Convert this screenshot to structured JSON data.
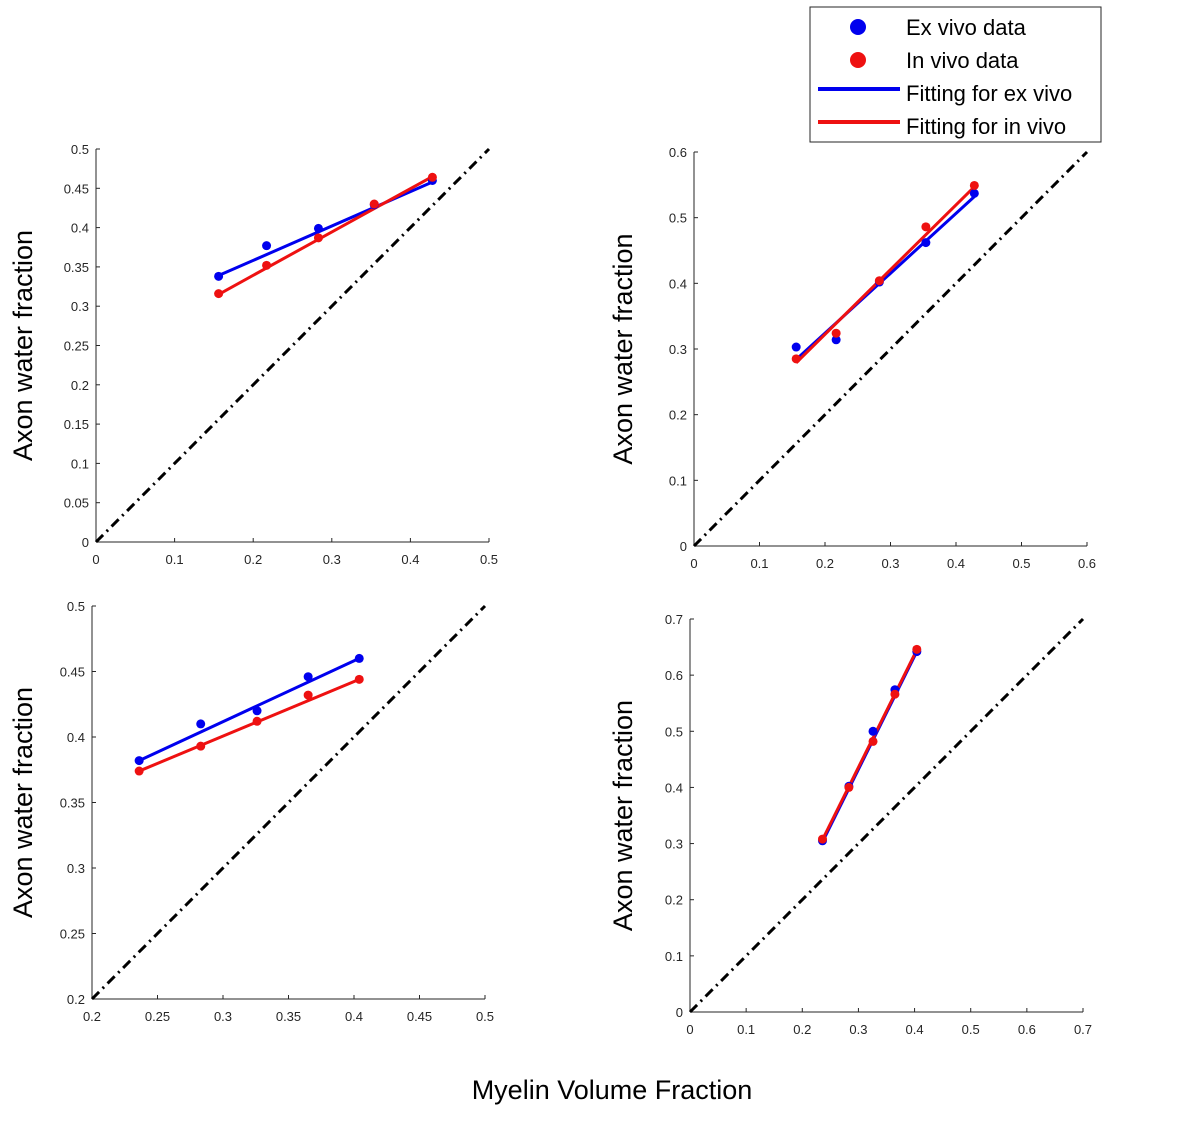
{
  "figure": {
    "xlabel": "Myelin Volume Fraction"
  },
  "legend": {
    "entries": [
      {
        "label": "Ex vivo data",
        "kind": "marker",
        "color": "#0000ee"
      },
      {
        "label": "In vivo data",
        "kind": "marker",
        "color": "#ee1111"
      },
      {
        "label": "Fitting for ex vivo",
        "kind": "line",
        "color": "#0000ee"
      },
      {
        "label": "Fitting for in vivo",
        "kind": "line",
        "color": "#ee1111"
      }
    ]
  },
  "colors": {
    "ex_vivo": "#0000ee",
    "in_vivo": "#ee1111",
    "identity": "#000000",
    "axis": "#262626"
  },
  "chart_data": [
    {
      "type": "scatter",
      "title": "",
      "xlabel": "",
      "ylabel": "Axon water fraction",
      "xlim": [
        0,
        0.5
      ],
      "ylim": [
        0,
        0.5
      ],
      "xticks": [
        "0",
        "0.1",
        "0.2",
        "0.3",
        "0.4",
        "0.5"
      ],
      "yticks": [
        "0",
        "0.05",
        "0.1",
        "0.15",
        "0.2",
        "0.25",
        "0.3",
        "0.35",
        "0.4",
        "0.45",
        "0.5"
      ],
      "identity_line": true,
      "series": [
        {
          "name": "Ex vivo data",
          "x": [
            0.156,
            0.217,
            0.283,
            0.354,
            0.428
          ],
          "y": [
            0.338,
            0.377,
            0.399,
            0.429,
            0.46
          ]
        },
        {
          "name": "In vivo data",
          "x": [
            0.156,
            0.217,
            0.283,
            0.354,
            0.428
          ],
          "y": [
            0.316,
            0.352,
            0.387,
            0.43,
            0.464
          ]
        }
      ],
      "fits": [
        {
          "name": "Fitting for ex vivo",
          "x": [
            0.156,
            0.428
          ],
          "y": [
            0.339,
            0.458
          ]
        },
        {
          "name": "Fitting for in vivo",
          "x": [
            0.156,
            0.428
          ],
          "y": [
            0.315,
            0.465
          ]
        }
      ]
    },
    {
      "type": "scatter",
      "title": "",
      "xlabel": "",
      "ylabel": "Axon water fraction",
      "xlim": [
        0,
        0.6
      ],
      "ylim": [
        0,
        0.6
      ],
      "xticks": [
        "0",
        "0.1",
        "0.2",
        "0.3",
        "0.4",
        "0.5",
        "0.6"
      ],
      "yticks": [
        "0",
        "0.1",
        "0.2",
        "0.3",
        "0.4",
        "0.5",
        "0.6"
      ],
      "identity_line": true,
      "series": [
        {
          "name": "Ex vivo data",
          "x": [
            0.156,
            0.217,
            0.283,
            0.354,
            0.428
          ],
          "y": [
            0.303,
            0.314,
            0.402,
            0.462,
            0.537
          ]
        },
        {
          "name": "In vivo data",
          "x": [
            0.156,
            0.217,
            0.283,
            0.354,
            0.428
          ],
          "y": [
            0.285,
            0.324,
            0.404,
            0.486,
            0.549
          ]
        }
      ],
      "fits": [
        {
          "name": "Fitting for ex vivo",
          "x": [
            0.156,
            0.428
          ],
          "y": [
            0.284,
            0.532
          ]
        },
        {
          "name": "Fitting for in vivo",
          "x": [
            0.156,
            0.428
          ],
          "y": [
            0.279,
            0.547
          ]
        }
      ]
    },
    {
      "type": "scatter",
      "title": "",
      "xlabel": "",
      "ylabel": "Axon water fraction",
      "xlim": [
        0.2,
        0.5
      ],
      "ylim": [
        0.2,
        0.5
      ],
      "xticks": [
        "0.2",
        "0.25",
        "0.3",
        "0.35",
        "0.4",
        "0.45",
        "0.5"
      ],
      "yticks": [
        "0.2",
        "0.25",
        "0.3",
        "0.35",
        "0.4",
        "0.45",
        "0.5"
      ],
      "identity_line": true,
      "series": [
        {
          "name": "Ex vivo data",
          "x": [
            0.236,
            0.283,
            0.326,
            0.365,
            0.404
          ],
          "y": [
            0.382,
            0.41,
            0.42,
            0.446,
            0.46
          ]
        },
        {
          "name": "In vivo data",
          "x": [
            0.236,
            0.283,
            0.326,
            0.365,
            0.404
          ],
          "y": [
            0.374,
            0.393,
            0.412,
            0.432,
            0.444
          ]
        }
      ],
      "fits": [
        {
          "name": "Fitting for ex vivo",
          "x": [
            0.236,
            0.404
          ],
          "y": [
            0.382,
            0.46
          ]
        },
        {
          "name": "Fitting for in vivo",
          "x": [
            0.236,
            0.404
          ],
          "y": [
            0.374,
            0.444
          ]
        }
      ]
    },
    {
      "type": "scatter",
      "title": "",
      "xlabel": "",
      "ylabel": "Axon water fraction",
      "xlim": [
        0,
        0.7
      ],
      "ylim": [
        0,
        0.7
      ],
      "xticks": [
        "0",
        "0.1",
        "0.2",
        "0.3",
        "0.4",
        "0.5",
        "0.6",
        "0.7"
      ],
      "yticks": [
        "0",
        "0.1",
        "0.2",
        "0.3",
        "0.4",
        "0.5",
        "0.6",
        "0.7"
      ],
      "identity_line": true,
      "series": [
        {
          "name": "Ex vivo data",
          "x": [
            0.236,
            0.283,
            0.326,
            0.365,
            0.404
          ],
          "y": [
            0.305,
            0.402,
            0.5,
            0.574,
            0.642
          ]
        },
        {
          "name": "In vivo data",
          "x": [
            0.236,
            0.283,
            0.326,
            0.365,
            0.404
          ],
          "y": [
            0.308,
            0.4,
            0.482,
            0.566,
            0.646
          ]
        }
      ],
      "fits": [
        {
          "name": "Fitting for ex vivo",
          "x": [
            0.236,
            0.404
          ],
          "y": [
            0.303,
            0.642
          ]
        },
        {
          "name": "Fitting for in vivo",
          "x": [
            0.236,
            0.404
          ],
          "y": [
            0.307,
            0.645
          ]
        }
      ]
    }
  ]
}
